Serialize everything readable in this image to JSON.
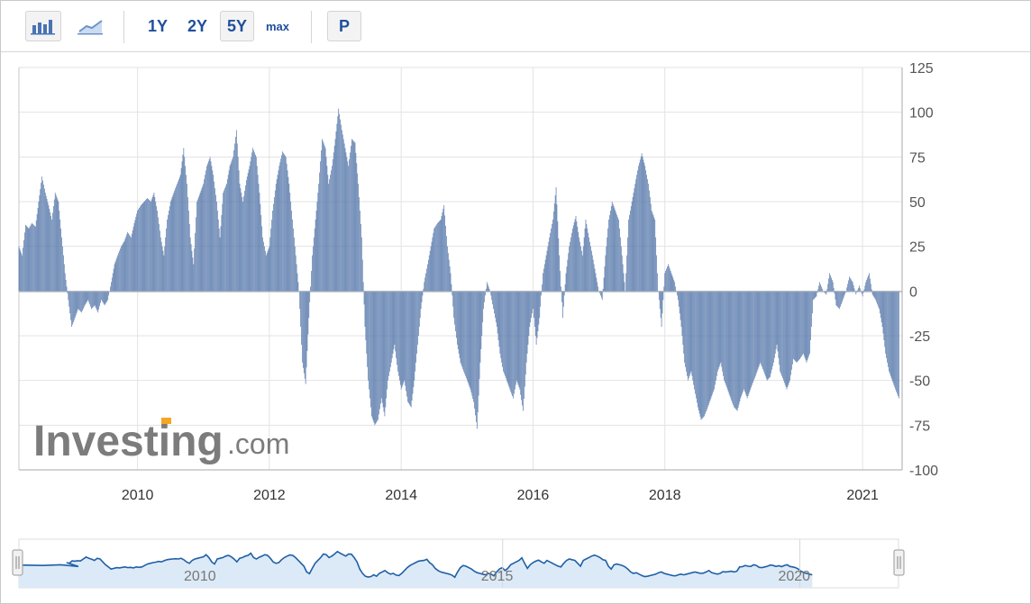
{
  "toolbar": {
    "bar_chart_icon": "bar-chart-icon",
    "line_chart_icon": "line-chart-icon",
    "periods": [
      "1Y",
      "2Y",
      "5Y",
      "max"
    ],
    "active_period": "5Y",
    "p_label": "P"
  },
  "watermark": {
    "brand": "Investing",
    "suffix": ".com"
  },
  "colors": {
    "bar": "#5879ab",
    "navigator_line": "#1f5fa6",
    "navigator_fill": "#dceaf7",
    "grid": "#e3e3e3"
  },
  "chart_data": {
    "type": "bar",
    "title": "",
    "xlabel": "",
    "ylabel": "",
    "ylim": [
      -100,
      125
    ],
    "y_ticks": [
      125,
      100,
      75,
      50,
      25,
      0,
      -25,
      -50,
      -75,
      -100
    ],
    "x_range": [
      2008.2,
      2021.6
    ],
    "x_ticks": [
      {
        "label": "2010",
        "x": 2010
      },
      {
        "label": "2012",
        "x": 2012
      },
      {
        "label": "2014",
        "x": 2014
      },
      {
        "label": "2016",
        "x": 2016
      },
      {
        "label": "2018",
        "x": 2018
      },
      {
        "label": "2021",
        "x": 2021
      }
    ],
    "grid": true,
    "series": [
      {
        "points": [
          [
            2008.2,
            25
          ],
          [
            2008.25,
            20
          ],
          [
            2008.3,
            37
          ],
          [
            2008.35,
            35
          ],
          [
            2008.4,
            38
          ],
          [
            2008.45,
            36
          ],
          [
            2008.5,
            50
          ],
          [
            2008.55,
            64
          ],
          [
            2008.6,
            55
          ],
          [
            2008.65,
            48
          ],
          [
            2008.7,
            40
          ],
          [
            2008.75,
            55
          ],
          [
            2008.8,
            50
          ],
          [
            2008.85,
            30
          ],
          [
            2008.9,
            10
          ],
          [
            2008.95,
            -5
          ],
          [
            2009.0,
            -20
          ],
          [
            2009.05,
            -15
          ],
          [
            2009.1,
            -10
          ],
          [
            2009.15,
            -12
          ],
          [
            2009.2,
            -8
          ],
          [
            2009.25,
            -5
          ],
          [
            2009.3,
            -10
          ],
          [
            2009.35,
            -8
          ],
          [
            2009.4,
            -12
          ],
          [
            2009.45,
            -5
          ],
          [
            2009.5,
            -8
          ],
          [
            2009.55,
            -5
          ],
          [
            2009.6,
            5
          ],
          [
            2009.65,
            15
          ],
          [
            2009.7,
            20
          ],
          [
            2009.75,
            25
          ],
          [
            2009.8,
            28
          ],
          [
            2009.85,
            33
          ],
          [
            2009.9,
            30
          ],
          [
            2009.95,
            38
          ],
          [
            2010.0,
            45
          ],
          [
            2010.05,
            48
          ],
          [
            2010.1,
            50
          ],
          [
            2010.15,
            52
          ],
          [
            2010.2,
            50
          ],
          [
            2010.25,
            55
          ],
          [
            2010.3,
            45
          ],
          [
            2010.35,
            30
          ],
          [
            2010.4,
            20
          ],
          [
            2010.45,
            40
          ],
          [
            2010.5,
            50
          ],
          [
            2010.55,
            55
          ],
          [
            2010.6,
            60
          ],
          [
            2010.65,
            65
          ],
          [
            2010.7,
            80
          ],
          [
            2010.75,
            60
          ],
          [
            2010.8,
            30
          ],
          [
            2010.85,
            15
          ],
          [
            2010.9,
            50
          ],
          [
            2010.95,
            55
          ],
          [
            2011.0,
            60
          ],
          [
            2011.05,
            70
          ],
          [
            2011.1,
            75
          ],
          [
            2011.15,
            65
          ],
          [
            2011.2,
            50
          ],
          [
            2011.25,
            30
          ],
          [
            2011.3,
            55
          ],
          [
            2011.35,
            60
          ],
          [
            2011.4,
            70
          ],
          [
            2011.45,
            75
          ],
          [
            2011.5,
            90
          ],
          [
            2011.55,
            60
          ],
          [
            2011.6,
            50
          ],
          [
            2011.65,
            62
          ],
          [
            2011.7,
            70
          ],
          [
            2011.75,
            80
          ],
          [
            2011.8,
            75
          ],
          [
            2011.85,
            55
          ],
          [
            2011.9,
            30
          ],
          [
            2011.95,
            20
          ],
          [
            2012.0,
            25
          ],
          [
            2012.05,
            45
          ],
          [
            2012.1,
            60
          ],
          [
            2012.15,
            70
          ],
          [
            2012.2,
            78
          ],
          [
            2012.25,
            75
          ],
          [
            2012.3,
            60
          ],
          [
            2012.35,
            40
          ],
          [
            2012.4,
            20
          ],
          [
            2012.45,
            0
          ],
          [
            2012.5,
            -40
          ],
          [
            2012.55,
            -52
          ],
          [
            2012.6,
            -15
          ],
          [
            2012.65,
            20
          ],
          [
            2012.7,
            40
          ],
          [
            2012.75,
            60
          ],
          [
            2012.8,
            85
          ],
          [
            2012.85,
            80
          ],
          [
            2012.9,
            60
          ],
          [
            2012.95,
            70
          ],
          [
            2013.0,
            85
          ],
          [
            2013.05,
            102
          ],
          [
            2013.1,
            90
          ],
          [
            2013.15,
            80
          ],
          [
            2013.2,
            70
          ],
          [
            2013.25,
            85
          ],
          [
            2013.3,
            83
          ],
          [
            2013.35,
            60
          ],
          [
            2013.4,
            30
          ],
          [
            2013.45,
            -20
          ],
          [
            2013.5,
            -50
          ],
          [
            2013.55,
            -70
          ],
          [
            2013.6,
            -75
          ],
          [
            2013.65,
            -72
          ],
          [
            2013.7,
            -60
          ],
          [
            2013.75,
            -70
          ],
          [
            2013.8,
            -50
          ],
          [
            2013.85,
            -40
          ],
          [
            2013.9,
            -30
          ],
          [
            2013.95,
            -45
          ],
          [
            2014.0,
            -55
          ],
          [
            2014.05,
            -50
          ],
          [
            2014.1,
            -62
          ],
          [
            2014.15,
            -65
          ],
          [
            2014.2,
            -50
          ],
          [
            2014.25,
            -30
          ],
          [
            2014.3,
            -10
          ],
          [
            2014.35,
            5
          ],
          [
            2014.4,
            15
          ],
          [
            2014.45,
            25
          ],
          [
            2014.5,
            35
          ],
          [
            2014.55,
            38
          ],
          [
            2014.6,
            40
          ],
          [
            2014.65,
            48
          ],
          [
            2014.7,
            25
          ],
          [
            2014.75,
            10
          ],
          [
            2014.8,
            -15
          ],
          [
            2014.85,
            -30
          ],
          [
            2014.9,
            -40
          ],
          [
            2014.95,
            -45
          ],
          [
            2015.0,
            -50
          ],
          [
            2015.05,
            -55
          ],
          [
            2015.1,
            -62
          ],
          [
            2015.15,
            -77
          ],
          [
            2015.2,
            -40
          ],
          [
            2015.25,
            -10
          ],
          [
            2015.3,
            5
          ],
          [
            2015.35,
            0
          ],
          [
            2015.4,
            -10
          ],
          [
            2015.45,
            -20
          ],
          [
            2015.5,
            -35
          ],
          [
            2015.55,
            -45
          ],
          [
            2015.6,
            -50
          ],
          [
            2015.65,
            -55
          ],
          [
            2015.7,
            -60
          ],
          [
            2015.75,
            -50
          ],
          [
            2015.8,
            -55
          ],
          [
            2015.85,
            -67
          ],
          [
            2015.9,
            -40
          ],
          [
            2015.95,
            -20
          ],
          [
            2016.0,
            -10
          ],
          [
            2016.05,
            -30
          ],
          [
            2016.1,
            -15
          ],
          [
            2016.15,
            10
          ],
          [
            2016.2,
            20
          ],
          [
            2016.25,
            30
          ],
          [
            2016.3,
            40
          ],
          [
            2016.35,
            58
          ],
          [
            2016.4,
            20
          ],
          [
            2016.45,
            -15
          ],
          [
            2016.5,
            10
          ],
          [
            2016.55,
            25
          ],
          [
            2016.6,
            35
          ],
          [
            2016.65,
            42
          ],
          [
            2016.7,
            30
          ],
          [
            2016.75,
            20
          ],
          [
            2016.8,
            40
          ],
          [
            2016.85,
            30
          ],
          [
            2016.9,
            20
          ],
          [
            2016.95,
            10
          ],
          [
            2017.0,
            0
          ],
          [
            2017.05,
            -5
          ],
          [
            2017.1,
            20
          ],
          [
            2017.15,
            40
          ],
          [
            2017.2,
            50
          ],
          [
            2017.25,
            45
          ],
          [
            2017.3,
            40
          ],
          [
            2017.35,
            20
          ],
          [
            2017.4,
            0
          ],
          [
            2017.45,
            40
          ],
          [
            2017.5,
            50
          ],
          [
            2017.55,
            60
          ],
          [
            2017.6,
            70
          ],
          [
            2017.65,
            77
          ],
          [
            2017.7,
            70
          ],
          [
            2017.75,
            60
          ],
          [
            2017.8,
            45
          ],
          [
            2017.85,
            40
          ],
          [
            2017.9,
            0
          ],
          [
            2017.95,
            -20
          ],
          [
            2018.0,
            10
          ],
          [
            2018.05,
            15
          ],
          [
            2018.1,
            10
          ],
          [
            2018.15,
            5
          ],
          [
            2018.2,
            -5
          ],
          [
            2018.25,
            -20
          ],
          [
            2018.3,
            -40
          ],
          [
            2018.35,
            -50
          ],
          [
            2018.4,
            -45
          ],
          [
            2018.45,
            -55
          ],
          [
            2018.5,
            -65
          ],
          [
            2018.55,
            -72
          ],
          [
            2018.6,
            -70
          ],
          [
            2018.65,
            -65
          ],
          [
            2018.7,
            -60
          ],
          [
            2018.75,
            -55
          ],
          [
            2018.8,
            -45
          ],
          [
            2018.85,
            -40
          ],
          [
            2018.9,
            -50
          ],
          [
            2018.95,
            -55
          ],
          [
            2019.0,
            -60
          ],
          [
            2019.05,
            -65
          ],
          [
            2019.1,
            -67
          ],
          [
            2019.15,
            -60
          ],
          [
            2019.2,
            -55
          ],
          [
            2019.25,
            -60
          ],
          [
            2019.3,
            -55
          ],
          [
            2019.35,
            -50
          ],
          [
            2019.4,
            -45
          ],
          [
            2019.45,
            -40
          ],
          [
            2019.5,
            -45
          ],
          [
            2019.55,
            -50
          ],
          [
            2019.6,
            -48
          ],
          [
            2019.65,
            -40
          ],
          [
            2019.7,
            -30
          ],
          [
            2019.75,
            -45
          ],
          [
            2019.8,
            -50
          ],
          [
            2019.85,
            -55
          ],
          [
            2019.9,
            -50
          ],
          [
            2019.95,
            -38
          ],
          [
            2020.0,
            -40
          ],
          [
            2020.05,
            -38
          ],
          [
            2020.1,
            -35
          ],
          [
            2020.15,
            -40
          ],
          [
            2020.2,
            -35
          ],
          [
            2020.25,
            -5
          ],
          [
            2020.3,
            -3
          ],
          [
            2020.35,
            5
          ],
          [
            2020.4,
            0
          ],
          [
            2020.45,
            -2
          ],
          [
            2020.5,
            10
          ],
          [
            2020.55,
            5
          ],
          [
            2020.6,
            -8
          ],
          [
            2020.65,
            -10
          ],
          [
            2020.7,
            -5
          ],
          [
            2020.75,
            0
          ],
          [
            2020.8,
            8
          ],
          [
            2020.85,
            5
          ],
          [
            2020.9,
            -2
          ],
          [
            2020.95,
            3
          ],
          [
            2021.0,
            -3
          ],
          [
            2021.05,
            5
          ],
          [
            2021.1,
            10
          ],
          [
            2021.15,
            -2
          ],
          [
            2021.2,
            -5
          ],
          [
            2021.25,
            -10
          ],
          [
            2021.3,
            -20
          ],
          [
            2021.35,
            -35
          ],
          [
            2021.4,
            -45
          ],
          [
            2021.45,
            -50
          ],
          [
            2021.5,
            -55
          ],
          [
            2021.55,
            -60
          ]
        ]
      }
    ],
    "navigator": {
      "labels": [
        {
          "label": "2010",
          "x": 2010
        },
        {
          "label": "2015",
          "x": 2015
        },
        {
          "label": "2020",
          "x": 2020
        }
      ],
      "x_range": [
        2006.8,
        2021.6
      ]
    }
  }
}
